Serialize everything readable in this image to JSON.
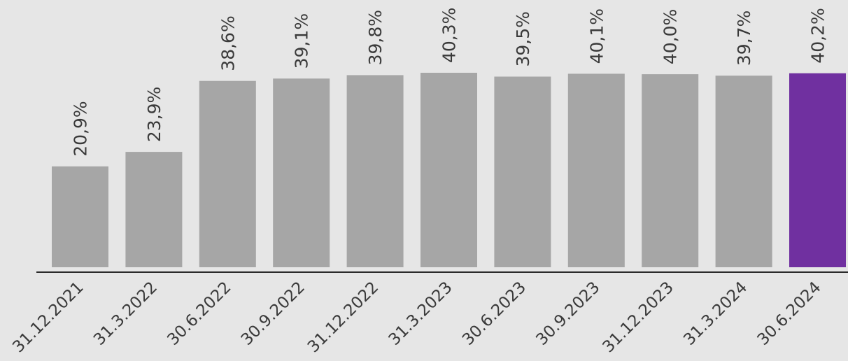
{
  "chart_data": {
    "type": "bar",
    "categories": [
      "31.12.2021",
      "31.3.2022",
      "30.6.2022",
      "30.9.2022",
      "31.12.2022",
      "31.3.2023",
      "30.6.2023",
      "30.9.2023",
      "31.12.2023",
      "31.3.2024",
      "30.6.2024"
    ],
    "values": [
      20.9,
      23.9,
      38.6,
      39.1,
      39.8,
      40.3,
      39.5,
      40.1,
      40.0,
      39.7,
      40.2
    ],
    "value_labels": [
      "20,9%",
      "23,9%",
      "38,6%",
      "39,1%",
      "39,8%",
      "40,3%",
      "39,5%",
      "40,1%",
      "40,0%",
      "39,7%",
      "40,2%"
    ],
    "title": "",
    "xlabel": "",
    "ylabel": "",
    "grid": false,
    "legend": "none",
    "colors": {
      "bar": "#a6a6a6",
      "highlight": "#7030a0",
      "axis": "#2b2b2b",
      "background": "#e6e6e6"
    },
    "highlight_index": 10
  }
}
